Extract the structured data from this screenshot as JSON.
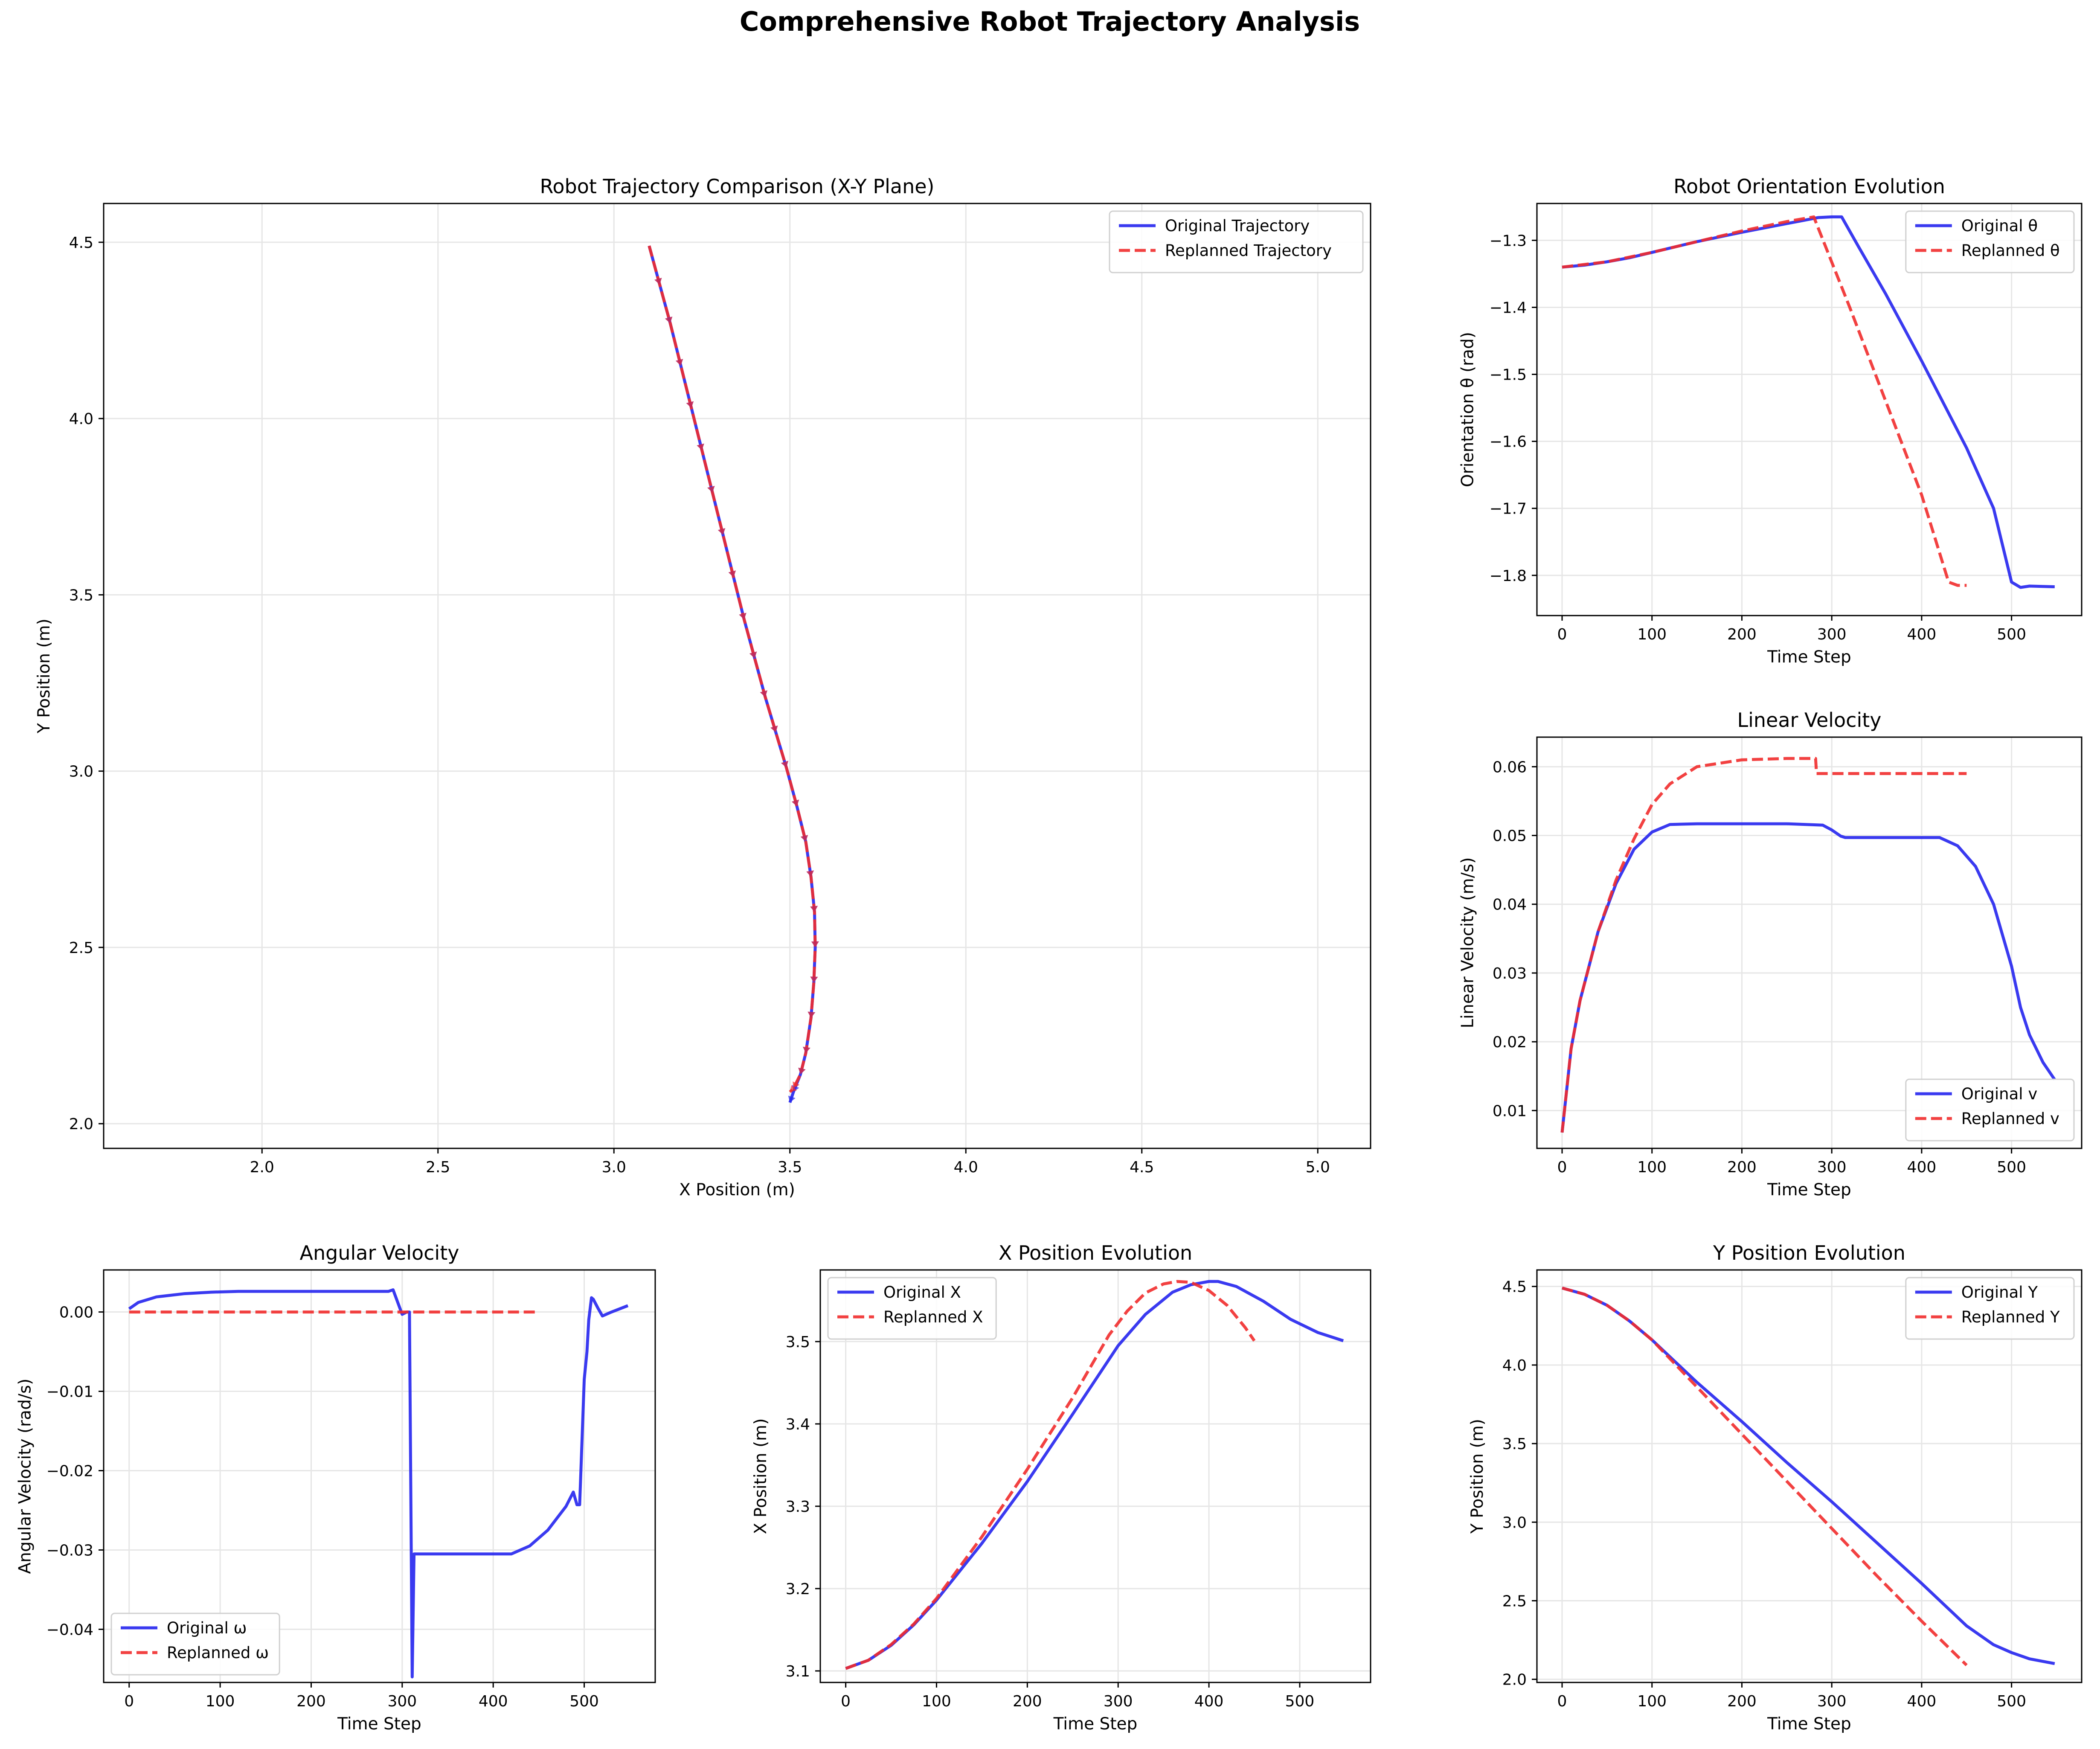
{
  "figure": {
    "title": "Comprehensive Robot Trajectory Analysis"
  },
  "colors": {
    "original": "#2525ee",
    "replanned": "#f12c2c",
    "grid": "#e6e6e6",
    "frame": "#000000"
  },
  "chart_data": [
    {
      "id": "traj",
      "type": "line",
      "title": "Robot Trajectory Comparison (X-Y Plane)",
      "xlabel": "X Position (m)",
      "ylabel": "Y Position (m)",
      "xlim": [
        1.55,
        5.15
      ],
      "ylim": [
        1.93,
        4.61
      ],
      "xticks": [
        2.0,
        2.5,
        3.0,
        3.5,
        4.0,
        4.5,
        5.0
      ],
      "yticks": [
        2.0,
        2.5,
        3.0,
        3.5,
        4.0,
        4.5
      ],
      "tick_decimals": 1,
      "grid": true,
      "legend": "top-right",
      "arrows": true,
      "series": [
        {
          "name": "Original Trajectory",
          "style": "solid",
          "color": "#2525ee",
          "x": [
            3.1,
            3.13,
            3.16,
            3.19,
            3.22,
            3.25,
            3.28,
            3.31,
            3.34,
            3.37,
            3.4,
            3.43,
            3.46,
            3.49,
            3.52,
            3.545,
            3.56,
            3.57,
            3.572,
            3.568,
            3.56,
            3.545,
            3.53,
            3.51,
            3.5
          ],
          "y": [
            4.49,
            4.38,
            4.27,
            4.15,
            4.03,
            3.91,
            3.79,
            3.67,
            3.55,
            3.43,
            3.32,
            3.21,
            3.11,
            3.01,
            2.9,
            2.8,
            2.7,
            2.6,
            2.5,
            2.4,
            2.3,
            2.2,
            2.14,
            2.09,
            2.06
          ]
        },
        {
          "name": "Replanned Trajectory",
          "style": "dashed",
          "color": "#f12c2c",
          "x": [
            3.1,
            3.13,
            3.16,
            3.19,
            3.22,
            3.25,
            3.28,
            3.31,
            3.34,
            3.37,
            3.4,
            3.43,
            3.46,
            3.49,
            3.52,
            3.545,
            3.56,
            3.57,
            3.572,
            3.568,
            3.56,
            3.545,
            3.53,
            3.51,
            3.5
          ],
          "y": [
            4.49,
            4.38,
            4.27,
            4.15,
            4.03,
            3.91,
            3.79,
            3.67,
            3.55,
            3.43,
            3.32,
            3.21,
            3.11,
            3.01,
            2.9,
            2.8,
            2.7,
            2.6,
            2.5,
            2.4,
            2.3,
            2.2,
            2.14,
            2.1,
            2.09
          ]
        }
      ]
    },
    {
      "id": "theta",
      "type": "line",
      "title": "Robot Orientation Evolution",
      "xlabel": "Time Step",
      "ylabel": "Orientation θ (rad)",
      "xlim": [
        -28,
        578
      ],
      "ylim": [
        -1.86,
        -1.245
      ],
      "xticks": [
        0,
        100,
        200,
        300,
        400,
        500
      ],
      "yticks": [
        -1.8,
        -1.7,
        -1.6,
        -1.5,
        -1.4,
        -1.3
      ],
      "tick_decimals": 1,
      "grid": true,
      "legend": "top-right",
      "series": [
        {
          "name": "Original θ",
          "style": "solid",
          "color": "#2525ee",
          "x": [
            0,
            25,
            50,
            75,
            100,
            150,
            200,
            250,
            285,
            300,
            311,
            330,
            360,
            400,
            450,
            480,
            500,
            510,
            520,
            548
          ],
          "y": [
            -1.34,
            -1.337,
            -1.332,
            -1.326,
            -1.318,
            -1.302,
            -1.288,
            -1.275,
            -1.266,
            -1.265,
            -1.265,
            -1.31,
            -1.38,
            -1.48,
            -1.61,
            -1.7,
            -1.81,
            -1.818,
            -1.816,
            -1.817
          ]
        },
        {
          "name": "Replanned θ",
          "style": "dashed",
          "color": "#f12c2c",
          "x": [
            0,
            50,
            100,
            150,
            200,
            250,
            280,
            320,
            360,
            400,
            430,
            440,
            450
          ],
          "y": [
            -1.34,
            -1.332,
            -1.318,
            -1.302,
            -1.286,
            -1.272,
            -1.265,
            -1.4,
            -1.54,
            -1.68,
            -1.81,
            -1.815,
            -1.815
          ]
        }
      ]
    },
    {
      "id": "v",
      "type": "line",
      "title": "Linear Velocity",
      "xlabel": "Time Step",
      "ylabel": "Linear Velocity (m/s)",
      "xlim": [
        -28,
        578
      ],
      "ylim": [
        0.0045,
        0.0643
      ],
      "xticks": [
        0,
        100,
        200,
        300,
        400,
        500
      ],
      "yticks": [
        0.01,
        0.02,
        0.03,
        0.04,
        0.05,
        0.06
      ],
      "tick_decimals": 2,
      "grid": true,
      "legend": "bottom-right",
      "series": [
        {
          "name": "Original v",
          "style": "solid",
          "color": "#2525ee",
          "x": [
            0,
            10,
            20,
            40,
            60,
            80,
            100,
            120,
            150,
            200,
            250,
            290,
            300,
            310,
            315,
            330,
            380,
            420,
            440,
            460,
            480,
            500,
            510,
            520,
            535,
            548
          ],
          "y": [
            0.0068,
            0.019,
            0.026,
            0.036,
            0.043,
            0.048,
            0.0505,
            0.0516,
            0.0517,
            0.0517,
            0.0517,
            0.0515,
            0.0508,
            0.0499,
            0.0497,
            0.0497,
            0.0497,
            0.0497,
            0.0485,
            0.0455,
            0.04,
            0.031,
            0.025,
            0.021,
            0.017,
            0.0145
          ]
        },
        {
          "name": "Replanned v",
          "style": "dashed",
          "color": "#f12c2c",
          "x": [
            0,
            10,
            20,
            40,
            60,
            80,
            100,
            120,
            150,
            200,
            250,
            282,
            283,
            320,
            400,
            450
          ],
          "y": [
            0.0068,
            0.019,
            0.026,
            0.036,
            0.0435,
            0.0495,
            0.0545,
            0.0575,
            0.06,
            0.061,
            0.0612,
            0.0612,
            0.059,
            0.059,
            0.059,
            0.059
          ]
        }
      ]
    },
    {
      "id": "omega",
      "type": "line",
      "title": "Angular Velocity",
      "xlabel": "Time Step",
      "ylabel": "Angular Velocity (rad/s)",
      "xlim": [
        -28,
        578
      ],
      "ylim": [
        -0.0467,
        0.0053
      ],
      "xticks": [
        0,
        100,
        200,
        300,
        400,
        500
      ],
      "yticks": [
        -0.04,
        -0.03,
        -0.02,
        -0.01,
        0.0
      ],
      "tick_decimals": 2,
      "grid": true,
      "legend": "bottom-left",
      "series": [
        {
          "name": "Original ω",
          "style": "solid",
          "color": "#2525ee",
          "x": [
            0,
            10,
            30,
            60,
            90,
            120,
            200,
            285,
            290,
            300,
            305,
            308,
            310,
            311,
            313,
            420,
            440,
            460,
            480,
            488,
            492,
            495,
            500,
            503,
            505,
            508,
            510,
            515,
            520,
            530,
            548
          ],
          "y": [
            0.0004,
            0.0012,
            0.0019,
            0.0023,
            0.0025,
            0.0026,
            0.0026,
            0.0026,
            0.0028,
            -0.0003,
            0.0,
            0.0,
            -0.031,
            -0.046,
            -0.0305,
            -0.0305,
            -0.0295,
            -0.0275,
            -0.0245,
            -0.0227,
            -0.0243,
            -0.0243,
            -0.0085,
            -0.005,
            -0.001,
            0.0018,
            0.0016,
            0.0005,
            -0.0005,
            0.0,
            0.0008
          ]
        },
        {
          "name": "Replanned ω",
          "style": "dashed",
          "color": "#f12c2c",
          "x": [
            0,
            450
          ],
          "y": [
            0.0,
            0.0
          ]
        }
      ]
    },
    {
      "id": "xpos",
      "type": "line",
      "title": "X Position Evolution",
      "xlabel": "Time Step",
      "ylabel": "X Position (m)",
      "xlim": [
        -28,
        578
      ],
      "ylim": [
        3.086,
        3.587
      ],
      "xticks": [
        0,
        100,
        200,
        300,
        400,
        500
      ],
      "yticks": [
        3.1,
        3.2,
        3.3,
        3.4,
        3.5
      ],
      "tick_decimals": 1,
      "grid": true,
      "legend": "top-left",
      "series": [
        {
          "name": "Original X",
          "style": "solid",
          "color": "#2525ee",
          "x": [
            0,
            25,
            50,
            75,
            100,
            150,
            200,
            250,
            300,
            330,
            360,
            380,
            400,
            410,
            430,
            460,
            490,
            520,
            548
          ],
          "y": [
            3.103,
            3.113,
            3.131,
            3.156,
            3.186,
            3.255,
            3.33,
            3.412,
            3.495,
            3.533,
            3.56,
            3.569,
            3.573,
            3.573,
            3.567,
            3.549,
            3.527,
            3.511,
            3.501
          ]
        },
        {
          "name": "Replanned X",
          "style": "dashed",
          "color": "#f12c2c",
          "x": [
            0,
            25,
            50,
            75,
            100,
            150,
            200,
            250,
            290,
            310,
            330,
            350,
            365,
            380,
            400,
            420,
            440,
            450
          ],
          "y": [
            3.103,
            3.113,
            3.132,
            3.157,
            3.188,
            3.263,
            3.345,
            3.432,
            3.508,
            3.537,
            3.559,
            3.57,
            3.573,
            3.572,
            3.562,
            3.544,
            3.517,
            3.501
          ]
        }
      ]
    },
    {
      "id": "ypos",
      "type": "line",
      "title": "Y Position Evolution",
      "xlabel": "Time Step",
      "ylabel": "Y Position (m)",
      "xlim": [
        -28,
        578
      ],
      "ylim": [
        1.98,
        4.605
      ],
      "xticks": [
        0,
        100,
        200,
        300,
        400,
        500
      ],
      "yticks": [
        2.0,
        2.5,
        3.0,
        3.5,
        4.0,
        4.5
      ],
      "tick_decimals": 1,
      "grid": true,
      "legend": "top-right",
      "series": [
        {
          "name": "Original Y",
          "style": "solid",
          "color": "#2525ee",
          "x": [
            0,
            25,
            50,
            75,
            100,
            150,
            200,
            250,
            300,
            350,
            400,
            450,
            480,
            500,
            520,
            548
          ],
          "y": [
            4.49,
            4.45,
            4.38,
            4.28,
            4.16,
            3.89,
            3.64,
            3.38,
            3.13,
            2.87,
            2.61,
            2.34,
            2.22,
            2.17,
            2.13,
            2.1
          ]
        },
        {
          "name": "Replanned Y",
          "style": "dashed",
          "color": "#f12c2c",
          "x": [
            0,
            25,
            50,
            75,
            100,
            150,
            200,
            250,
            300,
            350,
            400,
            450
          ],
          "y": [
            4.49,
            4.45,
            4.38,
            4.28,
            4.16,
            3.86,
            3.56,
            3.26,
            2.96,
            2.66,
            2.37,
            2.09
          ]
        }
      ]
    }
  ]
}
